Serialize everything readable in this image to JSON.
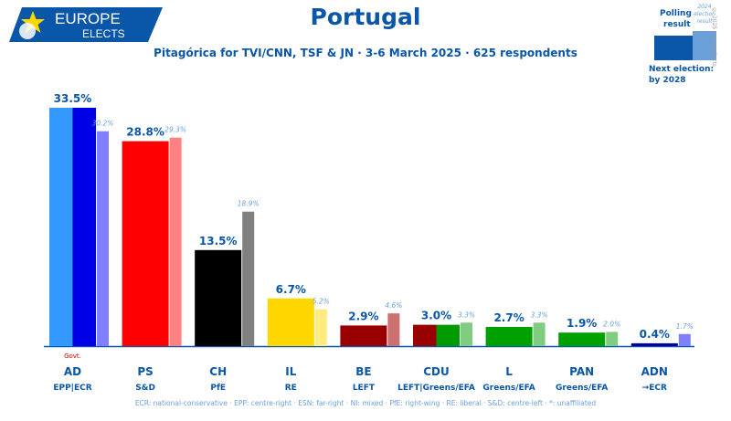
{
  "header": {
    "logo_top": "EUROPE",
    "logo_bottom": "ELECTS",
    "title": "Portugal",
    "subtitle": "Pitagórica for TVI/CNN, TSF & JN · 3-6 March 2025 · 625 respondents"
  },
  "legend": {
    "polling_label_1": "Polling",
    "polling_label_2": "result",
    "prev_label_1": "2024",
    "prev_label_2": "election",
    "prev_label_3": "result",
    "next_election_1": "Next election:",
    "next_election_2": "by 2028"
  },
  "watermark": "© 2025 europeelects",
  "footer": "ECR: national-conservative · EPP: centre-right · ESN: far-right · NI: mixed · PfE: right-wing · RE: liberal · S&D: centre-left · *: unaffiliated",
  "colors": {
    "brand_blue": "#0a56a8",
    "light_blue": "#6a9fd8"
  },
  "chart_data": {
    "type": "bar",
    "categories": [
      "AD",
      "PS",
      "CH",
      "IL",
      "BE",
      "CDU",
      "L",
      "PAN",
      "ADN"
    ],
    "groups": [
      "EPP|ECR",
      "S&D",
      "PfE",
      "RE",
      "LEFT",
      "LEFT|Greens/EFA",
      "Greens/EFA",
      "Greens/EFA",
      "→ECR"
    ],
    "series": [
      {
        "values": [
          33.5,
          28.8,
          13.5,
          6.7,
          2.9,
          3.0,
          2.7,
          1.9,
          0.4
        ],
        "labels": [
          "33.5%",
          "28.8%",
          "13.5%",
          "6.7%",
          "2.9%",
          "3.0%",
          "2.7%",
          "1.9%",
          "0.4%"
        ]
      },
      {
        "values": [
          30.2,
          29.3,
          18.9,
          5.2,
          4.6,
          3.3,
          3.3,
          2.0,
          1.7
        ],
        "labels": [
          "30.2%",
          "29.3%",
          "18.9%",
          "5.2%",
          "4.6%",
          "3.3%",
          "3.3%",
          "2.0%",
          "1.7%"
        ]
      }
    ],
    "current_colors": [
      [
        "#3399ff",
        "#0000e6"
      ],
      "#ff0000",
      "#000000",
      "#ffd700",
      "#990000",
      [
        "#990000",
        "#009900"
      ],
      "#00a000",
      "#00a000",
      "#000099"
    ],
    "previous_colors": [
      "#8080ff",
      "#ff8080",
      "#808080",
      "#ffeb80",
      "#cc7070",
      "#80cc80",
      "#80cc80",
      "#80cc80",
      "#8080ff"
    ],
    "annotation": {
      "category": "AD",
      "text": "Govt."
    },
    "ylim": [
      0,
      35
    ]
  }
}
